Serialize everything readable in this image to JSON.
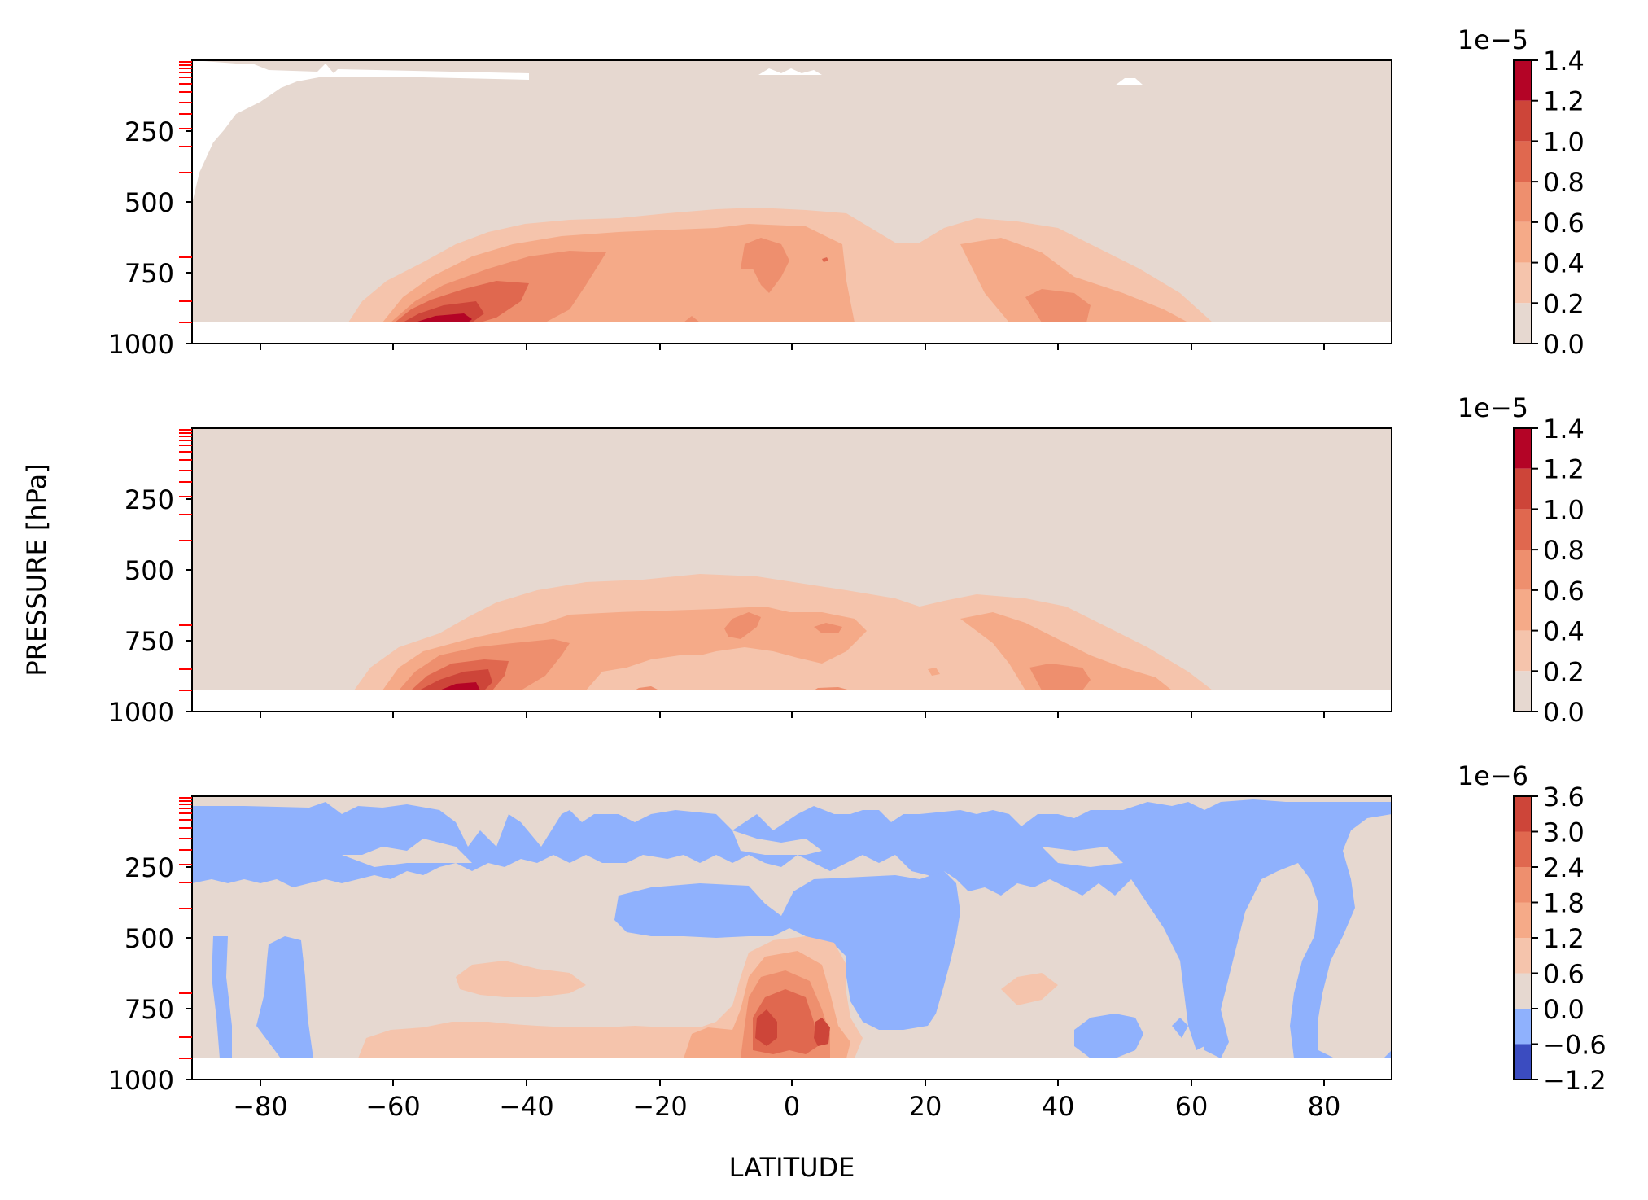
{
  "figure": {
    "ylabel": "PRESSURE [hPa]",
    "xlabel": "LATITUDE"
  },
  "chart_data": [
    {
      "type": "heatmap",
      "panel": "top",
      "x_range": [
        -90,
        90
      ],
      "y_range": [
        1000,
        0
      ],
      "y_ticks": [
        "250",
        "500",
        "750",
        "1000"
      ],
      "x_tick_values": [
        -80,
        -60,
        -40,
        -20,
        0,
        20,
        40,
        60,
        80
      ],
      "x_tick_labels_shown": false,
      "colorbar": {
        "offset_label": "1e−5",
        "ticks": [
          "0.0",
          "0.2",
          "0.4",
          "0.6",
          "0.8",
          "1.0",
          "1.2",
          "1.4"
        ],
        "level_colors": [
          "#e6d8d0",
          "#f5c4ac",
          "#f5aa88",
          "#ee8f6e",
          "#e0684f",
          "#cd4539",
          "#b40426"
        ]
      },
      "features": [
        {
          "lat": -48,
          "p": 905,
          "value": 1.4
        },
        {
          "lat": -42,
          "p": 850,
          "value": 0.9
        },
        {
          "lat": -5,
          "p": 700,
          "value": 0.8
        },
        {
          "lat": 40,
          "p": 860,
          "value": 0.6
        }
      ]
    },
    {
      "type": "heatmap",
      "panel": "middle",
      "x_range": [
        -90,
        90
      ],
      "y_range": [
        1000,
        0
      ],
      "y_ticks": [
        "250",
        "500",
        "750",
        "1000"
      ],
      "x_tick_values": [
        -80,
        -60,
        -40,
        -20,
        0,
        20,
        40,
        60,
        80
      ],
      "x_tick_labels_shown": false,
      "colorbar": {
        "offset_label": "1e−5",
        "ticks": [
          "0.0",
          "0.2",
          "0.4",
          "0.6",
          "0.8",
          "1.0",
          "1.2",
          "1.4"
        ],
        "level_colors": [
          "#e6d8d0",
          "#f5c4ac",
          "#f5aa88",
          "#ee8f6e",
          "#e0684f",
          "#cd4539",
          "#b40426"
        ]
      },
      "features": [
        {
          "lat": -48,
          "p": 900,
          "value": 1.2
        },
        {
          "lat": -42,
          "p": 850,
          "value": 0.9
        },
        {
          "lat": -5,
          "p": 700,
          "value": 0.6
        },
        {
          "lat": 40,
          "p": 860,
          "value": 0.6
        }
      ]
    },
    {
      "type": "heatmap",
      "panel": "bottom",
      "x_range": [
        -90,
        90
      ],
      "y_range": [
        1000,
        0
      ],
      "y_ticks": [
        "250",
        "500",
        "750",
        "1000"
      ],
      "x_tick_labels": [
        "−80",
        "−60",
        "−40",
        "−20",
        "0",
        "20",
        "40",
        "60",
        "80"
      ],
      "x_tick_values": [
        -80,
        -60,
        -40,
        -20,
        0,
        20,
        40,
        60,
        80
      ],
      "colorbar": {
        "offset_label": "1e−6",
        "ticks": [
          "−1.2",
          "−0.6",
          "0.0",
          "0.6",
          "1.2",
          "1.8",
          "2.4",
          "3.0",
          "3.6"
        ],
        "level_colors": [
          "#3b4cc0",
          "#8fb1fd",
          "#e6d8d0",
          "#f5c4ac",
          "#f5aa88",
          "#ee8f6e",
          "#e0684f",
          "#cd4539"
        ]
      },
      "features": [
        {
          "lat": -4,
          "p": 820,
          "value": 3.2
        },
        {
          "lat": 5,
          "p": 830,
          "value": 3.0
        },
        {
          "lat": 10,
          "p": 480,
          "value": -0.5
        },
        {
          "lat": -40,
          "p": 700,
          "value": 0.8
        }
      ]
    }
  ]
}
